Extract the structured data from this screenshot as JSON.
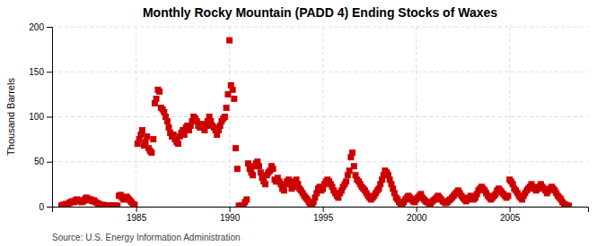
{
  "chart_data": {
    "type": "scatter",
    "title": "Monthly Rocky Mountain (PADD 4) Ending Stocks of Waxes",
    "ylabel": "Thousand Barrels",
    "annotations": [
      "Source: U.S. Energy Information Administration"
    ],
    "color": "#CC0000",
    "marker": "square",
    "grid": true,
    "xlim": [
      1980.5,
      2009.2
    ],
    "xticks": [
      1985,
      1990,
      1995,
      2000,
      2005
    ],
    "ylim": [
      0,
      200
    ],
    "yticks": [
      0,
      50,
      100,
      150,
      200
    ],
    "x": [
      1981.0,
      1981.08,
      1981.17,
      1981.25,
      1981.33,
      1981.42,
      1981.5,
      1981.58,
      1981.67,
      1981.75,
      1981.83,
      1981.92,
      1982.0,
      1982.08,
      1982.17,
      1982.25,
      1982.33,
      1982.42,
      1982.5,
      1982.58,
      1982.67,
      1982.75,
      1982.83,
      1982.92,
      1983.0,
      1983.08,
      1983.17,
      1983.25,
      1983.33,
      1983.42,
      1983.5,
      1983.58,
      1983.67,
      1983.75,
      1983.83,
      1983.92,
      1984.0,
      1984.08,
      1984.17,
      1984.25,
      1984.33,
      1984.42,
      1984.5,
      1984.58,
      1984.67,
      1984.75,
      1984.83,
      1984.92,
      1985.08,
      1985.17,
      1985.25,
      1985.33,
      1985.42,
      1985.5,
      1985.58,
      1985.67,
      1985.75,
      1985.83,
      1985.92,
      1986.0,
      1986.08,
      1986.17,
      1986.25,
      1986.33,
      1986.42,
      1986.5,
      1986.58,
      1986.67,
      1986.75,
      1986.83,
      1986.92,
      1987.0,
      1987.08,
      1987.17,
      1987.25,
      1987.33,
      1987.42,
      1987.5,
      1987.58,
      1987.67,
      1987.75,
      1987.83,
      1987.92,
      1988.0,
      1988.08,
      1988.17,
      1988.25,
      1988.33,
      1988.42,
      1988.5,
      1988.58,
      1988.67,
      1988.75,
      1988.83,
      1988.92,
      1989.0,
      1989.08,
      1989.17,
      1989.25,
      1989.33,
      1989.42,
      1989.5,
      1989.58,
      1989.67,
      1989.75,
      1989.83,
      1989.92,
      1990.0,
      1990.08,
      1990.17,
      1990.25,
      1990.33,
      1990.42,
      1990.5,
      1990.58,
      1990.67,
      1990.75,
      1990.83,
      1990.92,
      1991.0,
      1991.08,
      1991.17,
      1991.25,
      1991.33,
      1991.42,
      1991.5,
      1991.58,
      1991.67,
      1991.75,
      1991.83,
      1991.92,
      1992.0,
      1992.08,
      1992.17,
      1992.25,
      1992.33,
      1992.42,
      1992.5,
      1992.58,
      1992.67,
      1992.75,
      1992.83,
      1992.92,
      1993.0,
      1993.08,
      1993.17,
      1993.25,
      1993.33,
      1993.42,
      1993.5,
      1993.58,
      1993.67,
      1993.75,
      1993.83,
      1993.92,
      1994.0,
      1994.08,
      1994.17,
      1994.25,
      1994.33,
      1994.42,
      1994.5,
      1994.58,
      1994.67,
      1994.75,
      1994.83,
      1994.92,
      1995.0,
      1995.08,
      1995.17,
      1995.25,
      1995.33,
      1995.42,
      1995.5,
      1995.58,
      1995.67,
      1995.75,
      1995.83,
      1995.92,
      1996.0,
      1996.08,
      1996.17,
      1996.25,
      1996.33,
      1996.42,
      1996.5,
      1996.58,
      1996.67,
      1996.75,
      1996.83,
      1996.92,
      1997.0,
      1997.08,
      1997.17,
      1997.25,
      1997.33,
      1997.42,
      1997.5,
      1997.58,
      1997.67,
      1997.75,
      1997.83,
      1997.92,
      1998.0,
      1998.08,
      1998.17,
      1998.25,
      1998.33,
      1998.42,
      1998.5,
      1998.58,
      1998.67,
      1998.75,
      1998.83,
      1998.92,
      1999.0,
      1999.08,
      1999.17,
      1999.25,
      1999.33,
      1999.42,
      1999.5,
      1999.58,
      1999.67,
      1999.75,
      1999.83,
      1999.92,
      2000.0,
      2000.08,
      2000.17,
      2000.25,
      2000.33,
      2000.42,
      2000.5,
      2000.58,
      2000.67,
      2000.75,
      2000.83,
      2000.92,
      2001.0,
      2001.08,
      2001.17,
      2001.25,
      2001.33,
      2001.42,
      2001.5,
      2001.58,
      2001.67,
      2001.75,
      2001.83,
      2001.92,
      2002.0,
      2002.08,
      2002.17,
      2002.25,
      2002.33,
      2002.42,
      2002.5,
      2002.58,
      2002.67,
      2002.75,
      2002.83,
      2002.92,
      2003.0,
      2003.08,
      2003.17,
      2003.25,
      2003.33,
      2003.42,
      2003.5,
      2003.58,
      2003.67,
      2003.75,
      2003.83,
      2003.92,
      2004.0,
      2004.08,
      2004.17,
      2004.25,
      2004.33,
      2004.42,
      2004.5,
      2004.58,
      2004.67,
      2004.75,
      2004.83,
      2004.92,
      2005.0,
      2005.08,
      2005.17,
      2005.25,
      2005.33,
      2005.42,
      2005.5,
      2005.58,
      2005.67,
      2005.75,
      2005.83,
      2005.92,
      2006.0,
      2006.08,
      2006.17,
      2006.25,
      2006.33,
      2006.42,
      2006.5,
      2006.58,
      2006.67,
      2006.75,
      2006.83,
      2006.92,
      2007.0,
      2007.08,
      2007.17,
      2007.25,
      2007.33,
      2007.42,
      2007.5,
      2007.58,
      2007.67,
      2007.75,
      2007.83,
      2007.92,
      2008.0,
      2008.08,
      2008.17
    ],
    "values": [
      1,
      2,
      2,
      3,
      2,
      4,
      5,
      6,
      5,
      7,
      8,
      6,
      7,
      5,
      6,
      8,
      10,
      9,
      7,
      8,
      6,
      7,
      5,
      4,
      3,
      2,
      1,
      2,
      1,
      1,
      1,
      1,
      1,
      1,
      1,
      1,
      1,
      12,
      13,
      10,
      8,
      10,
      11,
      9,
      7,
      5,
      3,
      2,
      70,
      75,
      80,
      85,
      68,
      72,
      78,
      65,
      62,
      60,
      75,
      115,
      120,
      130,
      128,
      110,
      108,
      105,
      100,
      95,
      88,
      82,
      78,
      80,
      75,
      72,
      70,
      78,
      82,
      85,
      80,
      88,
      90,
      85,
      90,
      95,
      100,
      98,
      95,
      90,
      88,
      92,
      88,
      85,
      90,
      95,
      100,
      95,
      90,
      88,
      85,
      80,
      85,
      90,
      95,
      98,
      100,
      110,
      125,
      185,
      135,
      130,
      120,
      65,
      42,
      1,
      1,
      1,
      1,
      5,
      8,
      48,
      42,
      38,
      35,
      45,
      48,
      50,
      45,
      38,
      32,
      28,
      25,
      35,
      38,
      40,
      45,
      42,
      30,
      28,
      32,
      28,
      25,
      20,
      18,
      25,
      28,
      30,
      25,
      20,
      22,
      28,
      30,
      25,
      20,
      18,
      15,
      12,
      10,
      8,
      5,
      2,
      1,
      5,
      10,
      15,
      20,
      22,
      18,
      20,
      25,
      28,
      30,
      28,
      25,
      22,
      18,
      15,
      12,
      10,
      15,
      18,
      22,
      25,
      28,
      35,
      40,
      55,
      60,
      45,
      35,
      30,
      28,
      25,
      22,
      20,
      18,
      15,
      12,
      10,
      8,
      10,
      12,
      15,
      18,
      20,
      25,
      30,
      35,
      40,
      38,
      35,
      30,
      25,
      20,
      15,
      10,
      8,
      5,
      3,
      2,
      5,
      8,
      10,
      12,
      10,
      8,
      6,
      5,
      8,
      10,
      12,
      14,
      10,
      8,
      6,
      5,
      4,
      3,
      5,
      7,
      8,
      10,
      12,
      10,
      8,
      6,
      5,
      4,
      5,
      7,
      8,
      10,
      12,
      14,
      16,
      18,
      15,
      12,
      10,
      8,
      6,
      8,
      10,
      12,
      10,
      8,
      10,
      14,
      18,
      20,
      22,
      20,
      18,
      15,
      12,
      10,
      8,
      10,
      12,
      14,
      18,
      20,
      18,
      16,
      14,
      12,
      10,
      12,
      30,
      28,
      25,
      20,
      18,
      15,
      12,
      10,
      8,
      12,
      15,
      18,
      20,
      22,
      25,
      22,
      20,
      18,
      20,
      22,
      25,
      22,
      20,
      18,
      15,
      18,
      20,
      22,
      20,
      18,
      15,
      12,
      10,
      8,
      5,
      3,
      2,
      1,
      1
    ]
  }
}
